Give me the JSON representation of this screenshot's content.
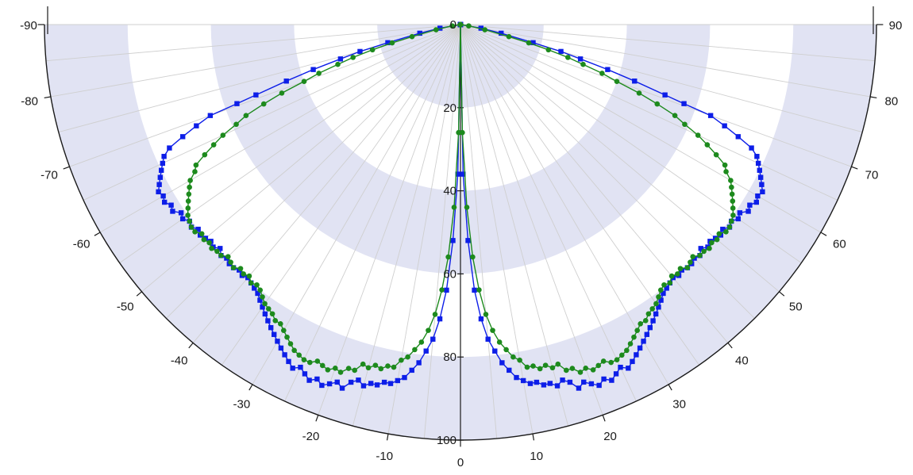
{
  "chart_data": {
    "type": "line",
    "polar": true,
    "angle_axis": {
      "range": [
        -90,
        90
      ],
      "labels": [
        "-90",
        "-80",
        "-70",
        "-60",
        "-50",
        "-40",
        "-30",
        "-20",
        "-10",
        "0",
        "10",
        "20",
        "30",
        "40",
        "50",
        "60",
        "70",
        "80",
        "90"
      ]
    },
    "radial_axis": {
      "range": [
        0,
        100
      ],
      "labels": [
        "0",
        "20",
        "40",
        "60",
        "80",
        "100"
      ],
      "inverted": false
    },
    "grid": true,
    "bands": [
      [
        0,
        20
      ],
      [
        40,
        60
      ],
      [
        80,
        100
      ]
    ],
    "colors": {
      "band": "#e1e3f3",
      "grid": "#cfcfcf",
      "axis": "#1a1a1a",
      "blue": "#0d1ee8",
      "green": "#1d8a1d"
    },
    "series": [
      {
        "color": "#0d1ee8",
        "marker": "square",
        "points": [
          [
            -90,
            0
          ],
          [
            -89,
            0
          ],
          [
            -87,
            0
          ],
          [
            -85,
            0
          ],
          [
            -83,
            0
          ],
          [
            -80,
            5
          ],
          [
            -78,
            10
          ],
          [
            -76,
            18
          ],
          [
            -75,
            25
          ],
          [
            -74,
            30
          ],
          [
            -73,
            37
          ],
          [
            -72,
            44
          ],
          [
            -71,
            52
          ],
          [
            -70.5,
            57
          ],
          [
            -70,
            64
          ],
          [
            -69,
            68
          ],
          [
            -68,
            72
          ],
          [
            -67,
            76
          ],
          [
            -66,
            78
          ],
          [
            -65,
            79
          ],
          [
            -64,
            80
          ],
          [
            -63,
            81
          ],
          [
            -62,
            82
          ],
          [
            -61,
            83
          ],
          [
            -60,
            82.5
          ],
          [
            -59,
            83
          ],
          [
            -58,
            82
          ],
          [
            -57,
            82.5
          ],
          [
            -56,
            81
          ],
          [
            -55,
            81.5
          ],
          [
            -54,
            80.5
          ],
          [
            -53,
            81
          ],
          [
            -52,
            80
          ],
          [
            -51,
            80.5
          ],
          [
            -50,
            80
          ],
          [
            -49,
            79.5
          ],
          [
            -48,
            80
          ],
          [
            -47,
            79
          ],
          [
            -46,
            80
          ],
          [
            -45,
            79.5
          ],
          [
            -44,
            80
          ],
          [
            -43,
            80
          ],
          [
            -42,
            79.5
          ],
          [
            -41,
            80
          ],
          [
            -40,
            79.5
          ],
          [
            -39,
            80
          ],
          [
            -38,
            80.5
          ],
          [
            -37,
            81
          ],
          [
            -36,
            82
          ],
          [
            -35,
            83
          ],
          [
            -34,
            84
          ],
          [
            -33,
            85
          ],
          [
            -32,
            86
          ],
          [
            -31,
            87
          ],
          [
            -30,
            88
          ],
          [
            -29,
            89
          ],
          [
            -28,
            90
          ],
          [
            -27,
            91
          ],
          [
            -26,
            92
          ],
          [
            -25,
            91
          ],
          [
            -24,
            92
          ],
          [
            -23,
            93
          ],
          [
            -22,
            92
          ],
          [
            -21,
            93
          ],
          [
            -20,
            92
          ],
          [
            -19,
            91
          ],
          [
            -18,
            92
          ],
          [
            -17,
            90
          ],
          [
            -16,
            89
          ],
          [
            -15,
            90
          ],
          [
            -14,
            89
          ],
          [
            -13,
            89
          ],
          [
            -12,
            88
          ],
          [
            -11,
            88
          ],
          [
            -10,
            87
          ],
          [
            -9,
            86
          ],
          [
            -8,
            84
          ],
          [
            -7,
            82
          ],
          [
            -6,
            79
          ],
          [
            -5,
            76
          ],
          [
            -4,
            71
          ],
          [
            -3,
            64
          ],
          [
            -2,
            52
          ],
          [
            -1,
            36
          ],
          [
            0,
            0
          ]
        ]
      },
      {
        "color": "#1d8a1d",
        "marker": "circle",
        "points": [
          [
            -90,
            0
          ],
          [
            -88,
            0
          ],
          [
            -86,
            0
          ],
          [
            -84,
            0
          ],
          [
            -81,
            2
          ],
          [
            -78,
            6
          ],
          [
            -76,
            12
          ],
          [
            -75,
            17
          ],
          [
            -74,
            22
          ],
          [
            -73,
            27
          ],
          [
            -72,
            31
          ],
          [
            -71,
            36
          ],
          [
            -70,
            40
          ],
          [
            -69,
            46
          ],
          [
            -68,
            51
          ],
          [
            -67,
            56
          ],
          [
            -66,
            59
          ],
          [
            -65,
            63
          ],
          [
            -64,
            66
          ],
          [
            -63,
            69
          ],
          [
            -62,
            72
          ],
          [
            -61,
            73
          ],
          [
            -60,
            75
          ],
          [
            -59,
            76
          ],
          [
            -58,
            77
          ],
          [
            -57,
            78
          ],
          [
            -56,
            79
          ],
          [
            -55,
            80
          ],
          [
            -54,
            80.5
          ],
          [
            -53,
            81
          ],
          [
            -52,
            81
          ],
          [
            -51,
            80
          ],
          [
            -50,
            80.5
          ],
          [
            -49,
            80
          ],
          [
            -48,
            80.5
          ],
          [
            -47,
            80
          ],
          [
            -46,
            80
          ],
          [
            -45,
            79
          ],
          [
            -44,
            79.5
          ],
          [
            -43,
            80
          ],
          [
            -42,
            79
          ],
          [
            -41,
            79.5
          ],
          [
            -40,
            79
          ],
          [
            -39,
            80
          ],
          [
            -38,
            79.5
          ],
          [
            -37,
            80
          ],
          [
            -36,
            81
          ],
          [
            -35,
            82
          ],
          [
            -34,
            82.5
          ],
          [
            -33,
            83
          ],
          [
            -32,
            84
          ],
          [
            -31,
            84
          ],
          [
            -30,
            85
          ],
          [
            -29,
            86
          ],
          [
            -28,
            87
          ],
          [
            -27,
            88
          ],
          [
            -26,
            88.5
          ],
          [
            -25,
            89
          ],
          [
            -24,
            89
          ],
          [
            -23,
            88
          ],
          [
            -22,
            88.5
          ],
          [
            -21,
            89
          ],
          [
            -20,
            88
          ],
          [
            -19,
            88.5
          ],
          [
            -18,
            87
          ],
          [
            -17,
            87
          ],
          [
            -16,
            85
          ],
          [
            -15,
            85.5
          ],
          [
            -14,
            84.5
          ],
          [
            -13,
            85
          ],
          [
            -12,
            84
          ],
          [
            -11,
            84
          ],
          [
            -10,
            82
          ],
          [
            -9,
            81
          ],
          [
            -8,
            79
          ],
          [
            -7,
            77
          ],
          [
            -6,
            74
          ],
          [
            -5,
            70
          ],
          [
            -4,
            64
          ],
          [
            -3,
            56
          ],
          [
            -2,
            44
          ],
          [
            -1,
            26
          ],
          [
            0,
            0
          ]
        ]
      }
    ]
  }
}
